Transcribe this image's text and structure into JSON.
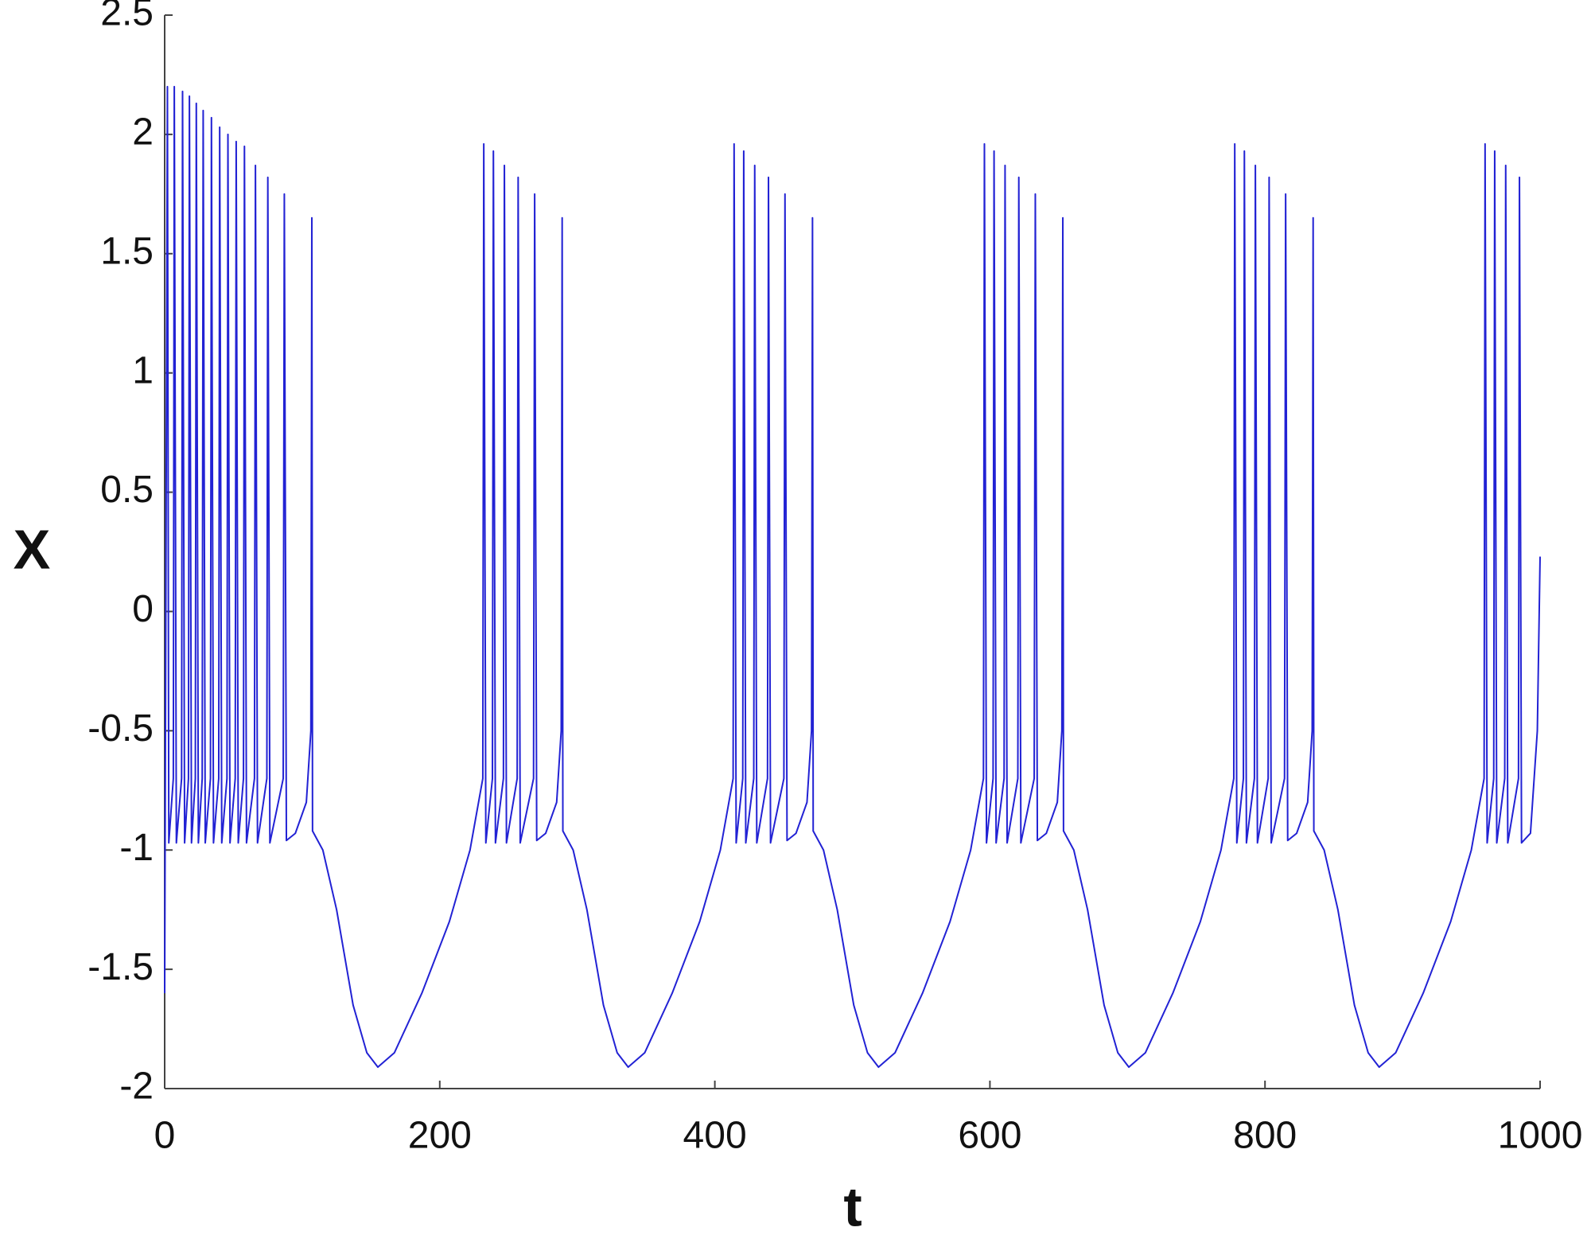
{
  "chart_data": {
    "type": "line",
    "x_label": "t",
    "y_label": "X",
    "color": "#2222d4",
    "xlim": [
      0,
      1000
    ],
    "xticks": [
      0,
      200,
      400,
      600,
      800,
      1000
    ],
    "ylim": [
      -2,
      2.5
    ],
    "yticks": [
      -2,
      -1.5,
      -1,
      -0.5,
      0,
      0.5,
      1,
      1.5,
      2,
      2.5
    ],
    "x": [
      0,
      2,
      3,
      6.3,
      7,
      8.5,
      12.3,
      13,
      14.5,
      17.3,
      18,
      19.5,
      22.3,
      23,
      24.5,
      27.3,
      28,
      29.5,
      33.3,
      34,
      35.5,
      39.3,
      40,
      41.5,
      45.3,
      46,
      47.5,
      51.3,
      52,
      53.5,
      57.3,
      58,
      59.5,
      65.3,
      66,
      67.5,
      74.3,
      75,
      76.5,
      86.2,
      87,
      88.5,
      95,
      103,
      106.3,
      107,
      107.5,
      115,
      125,
      137,
      147,
      155,
      167,
      187,
      207,
      222,
      231.3,
      232,
      233.5,
      238.3,
      239,
      240.5,
      246.3,
      247,
      248.5,
      256.3,
      257,
      258.5,
      268.2,
      269,
      270.5,
      277,
      285,
      288.3,
      289,
      289.5,
      297,
      307,
      319,
      329,
      337,
      349,
      369,
      389,
      404,
      413.3,
      414,
      415.5,
      420.3,
      421,
      422.5,
      428.3,
      429,
      430.5,
      438.3,
      439,
      440.5,
      450.2,
      451,
      452.5,
      459,
      467,
      470.3,
      471,
      471.5,
      479,
      489,
      501,
      511,
      519,
      531,
      551,
      571,
      586,
      595.3,
      596,
      597.5,
      602.3,
      603,
      604.5,
      610.3,
      611,
      612.5,
      620.3,
      621,
      622.5,
      632.2,
      633,
      634.5,
      641,
      649,
      652.3,
      653,
      653.5,
      661,
      671,
      683,
      693,
      701,
      713,
      733,
      753,
      768,
      777.3,
      778,
      779.5,
      784.3,
      785,
      786.5,
      792.3,
      793,
      794.5,
      802.3,
      803,
      804.5,
      814.2,
      815,
      816.5,
      823,
      831,
      834.3,
      835,
      835.5,
      843,
      853,
      865,
      875,
      883,
      895,
      915,
      935,
      950,
      959.3,
      960,
      961.5,
      966.3,
      967,
      968.5,
      974.3,
      975,
      976.5,
      984.3,
      985,
      986.5,
      993,
      998,
      1000
    ],
    "values": [
      -1.6,
      2.2,
      -0.97,
      -0.7,
      2.2,
      -0.97,
      -0.7,
      2.18,
      -0.97,
      -0.7,
      2.16,
      -0.97,
      -0.7,
      2.13,
      -0.97,
      -0.7,
      2.1,
      -0.97,
      -0.7,
      2.07,
      -0.97,
      -0.7,
      2.03,
      -0.97,
      -0.7,
      2.0,
      -0.97,
      -0.7,
      1.97,
      -0.97,
      -0.7,
      1.95,
      -0.97,
      -0.7,
      1.87,
      -0.97,
      -0.7,
      1.82,
      -0.97,
      -0.7,
      1.75,
      -0.96,
      -0.93,
      -0.8,
      -0.5,
      1.65,
      -0.92,
      -1.0,
      -1.25,
      -1.65,
      -1.85,
      -1.91,
      -1.85,
      -1.6,
      -1.3,
      -1.0,
      -0.7,
      1.96,
      -0.97,
      -0.7,
      1.93,
      -0.97,
      -0.7,
      1.87,
      -0.97,
      -0.7,
      1.82,
      -0.97,
      -0.7,
      1.75,
      -0.96,
      -0.93,
      -0.8,
      -0.5,
      1.65,
      -0.92,
      -1.0,
      -1.25,
      -1.65,
      -1.85,
      -1.91,
      -1.85,
      -1.6,
      -1.3,
      -1.0,
      -0.7,
      1.96,
      -0.97,
      -0.7,
      1.93,
      -0.97,
      -0.7,
      1.87,
      -0.97,
      -0.7,
      1.82,
      -0.97,
      -0.7,
      1.75,
      -0.96,
      -0.93,
      -0.8,
      -0.5,
      1.65,
      -0.92,
      -1.0,
      -1.25,
      -1.65,
      -1.85,
      -1.91,
      -1.85,
      -1.6,
      -1.3,
      -1.0,
      -0.7,
      1.96,
      -0.97,
      -0.7,
      1.93,
      -0.97,
      -0.7,
      1.87,
      -0.97,
      -0.7,
      1.82,
      -0.97,
      -0.7,
      1.75,
      -0.96,
      -0.93,
      -0.8,
      -0.5,
      1.65,
      -0.92,
      -1.0,
      -1.25,
      -1.65,
      -1.85,
      -1.91,
      -1.85,
      -1.6,
      -1.3,
      -1.0,
      -0.7,
      1.96,
      -0.97,
      -0.7,
      1.93,
      -0.97,
      -0.7,
      1.87,
      -0.97,
      -0.7,
      1.82,
      -0.97,
      -0.7,
      1.75,
      -0.96,
      -0.93,
      -0.8,
      -0.5,
      1.65,
      -0.92,
      -1.0,
      -1.25,
      -1.65,
      -1.85,
      -1.91,
      -1.85,
      -1.6,
      -1.3,
      -1.0,
      -0.7,
      1.96,
      -0.97,
      -0.7,
      1.93,
      -0.97,
      -0.7,
      1.87,
      -0.97,
      -0.7,
      1.82,
      -0.97,
      -0.93,
      -0.5,
      0.23
    ]
  }
}
